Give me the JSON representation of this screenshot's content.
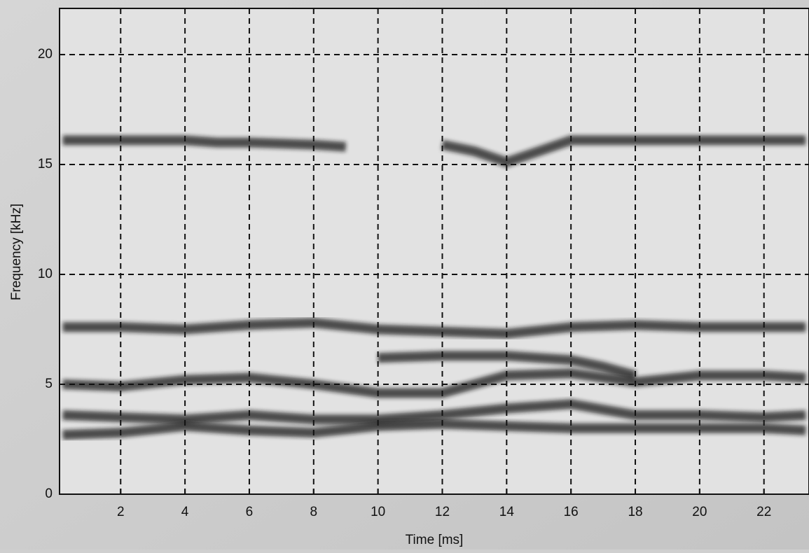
{
  "chart_data": {
    "type": "spectrogram",
    "x_label": "Time [ms]",
    "y_label": "Frequency [kHz]",
    "xlim": [
      0.1,
      23.4
    ],
    "ylim": [
      0,
      22.1
    ],
    "xticks": [
      2,
      4,
      6,
      8,
      10,
      12,
      14,
      16,
      18,
      20,
      22
    ],
    "yticks": [
      0,
      5,
      10,
      15,
      20
    ],
    "grid": true,
    "color": "#1e1e1e",
    "series": [
      {
        "x": [
          0.2,
          2,
          4,
          5,
          6,
          8,
          9,
          10,
          12,
          13,
          14,
          16,
          18,
          20,
          22,
          23.3
        ],
        "values": [
          16.1,
          16.1,
          16.1,
          16,
          16,
          15.9,
          15.8,
          null,
          15.9,
          15.6,
          15.1,
          16.1,
          16.1,
          16.1,
          16.1,
          16.1
        ]
      },
      {
        "x": [
          0.2,
          2,
          4,
          6,
          8,
          10,
          12,
          14,
          16,
          18,
          20,
          22,
          23.3
        ],
        "values": [
          7.6,
          7.6,
          7.5,
          7.7,
          7.8,
          7.5,
          7.4,
          7.3,
          7.6,
          7.7,
          7.6,
          7.6,
          7.6
        ]
      },
      {
        "x": [
          10,
          12,
          14,
          16,
          17,
          18
        ],
        "values": [
          6.2,
          6.3,
          6.3,
          6.1,
          5.8,
          5.4
        ]
      },
      {
        "x": [
          0.2,
          2,
          4,
          6,
          8,
          10,
          12,
          14,
          16,
          18,
          20,
          22,
          23.3
        ],
        "values": [
          5,
          4.9,
          5.2,
          5.3,
          5,
          4.6,
          4.6,
          5.4,
          5.5,
          5.1,
          5.4,
          5.4,
          5.3
        ]
      },
      {
        "x": [
          0.2,
          2,
          4,
          6,
          8,
          10,
          12,
          14,
          16,
          18,
          20,
          22,
          23.3
        ],
        "values": [
          3.6,
          3.5,
          3.4,
          3.6,
          3.4,
          3.4,
          3.6,
          3.9,
          4.1,
          3.6,
          3.6,
          3.5,
          3.6
        ]
      },
      {
        "x": [
          0.2,
          2,
          4,
          6,
          8,
          10,
          12,
          14,
          16,
          18,
          20,
          22,
          23.3
        ],
        "values": [
          2.7,
          2.8,
          3.1,
          2.9,
          2.8,
          3.1,
          3.2,
          3.1,
          3,
          3,
          3,
          3,
          2.9
        ]
      }
    ]
  }
}
